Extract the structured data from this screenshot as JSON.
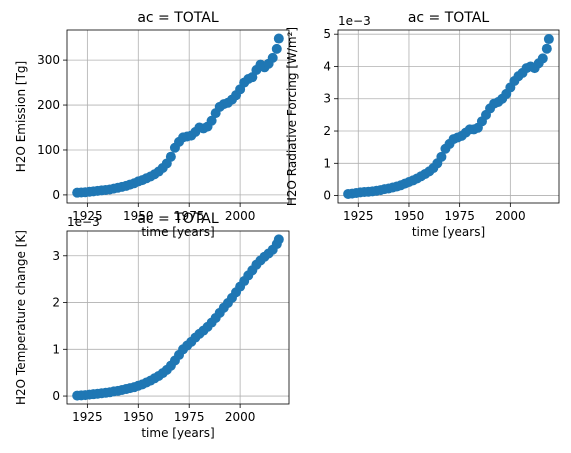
{
  "chart_data": [
    {
      "type": "scatter",
      "title": "ac = TOTAL",
      "xlabel": "time [years]",
      "ylabel": "H2O Emission [Tg]",
      "offset_text": "",
      "xlim": [
        1915,
        2024
      ],
      "ylim": [
        -18,
        367
      ],
      "xticks": [
        1925,
        1950,
        1975,
        2000
      ],
      "yticks": [
        0,
        100,
        200,
        300
      ],
      "grid": true,
      "color": "#1f77b4",
      "x": [
        1920,
        1922,
        1924,
        1926,
        1928,
        1930,
        1932,
        1934,
        1936,
        1938,
        1940,
        1942,
        1944,
        1946,
        1948,
        1950,
        1952,
        1954,
        1956,
        1958,
        1960,
        1962,
        1964,
        1966,
        1968,
        1970,
        1972,
        1974,
        1976,
        1978,
        1980,
        1982,
        1984,
        1986,
        1988,
        1990,
        1992,
        1994,
        1996,
        1998,
        2000,
        2002,
        2004,
        2006,
        2008,
        2010,
        2012,
        2014,
        2016,
        2018,
        2019
      ],
      "y": [
        5,
        5.5,
        6,
        7,
        8,
        9,
        10,
        11,
        12,
        14,
        16,
        18,
        20,
        23,
        26,
        30,
        33,
        37,
        41,
        46,
        52,
        60,
        70,
        85,
        105,
        118,
        128,
        130,
        132,
        140,
        150,
        148,
        152,
        165,
        182,
        196,
        202,
        205,
        212,
        222,
        235,
        250,
        258,
        262,
        278,
        290,
        284,
        292,
        305,
        325,
        348
      ]
    },
    {
      "type": "scatter",
      "title": "ac = TOTAL",
      "xlabel": "time [years]",
      "ylabel": "H2O Radiative Forcing [W/m²]",
      "offset_text": "1e−3",
      "xlim": [
        1915,
        2024
      ],
      "ylim": [
        -0.23,
        5.13
      ],
      "xticks": [
        1925,
        1950,
        1975,
        2000
      ],
      "yticks": [
        0,
        1,
        2,
        3,
        4,
        5
      ],
      "grid": true,
      "color": "#1f77b4",
      "x": [
        1920,
        1922,
        1924,
        1926,
        1928,
        1930,
        1932,
        1934,
        1936,
        1938,
        1940,
        1942,
        1944,
        1946,
        1948,
        1950,
        1952,
        1954,
        1956,
        1958,
        1960,
        1962,
        1964,
        1966,
        1968,
        1970,
        1972,
        1974,
        1976,
        1978,
        1980,
        1982,
        1984,
        1986,
        1988,
        1990,
        1992,
        1994,
        1996,
        1998,
        2000,
        2002,
        2004,
        2006,
        2008,
        2010,
        2012,
        2014,
        2016,
        2018,
        2019
      ],
      "y": [
        0.05,
        0.06,
        0.08,
        0.1,
        0.11,
        0.12,
        0.13,
        0.15,
        0.17,
        0.2,
        0.22,
        0.25,
        0.28,
        0.32,
        0.37,
        0.42,
        0.47,
        0.53,
        0.6,
        0.67,
        0.75,
        0.85,
        1.0,
        1.2,
        1.45,
        1.6,
        1.75,
        1.8,
        1.85,
        1.95,
        2.05,
        2.05,
        2.1,
        2.3,
        2.5,
        2.7,
        2.85,
        2.9,
        3.0,
        3.15,
        3.35,
        3.55,
        3.7,
        3.8,
        3.95,
        4.0,
        3.95,
        4.1,
        4.25,
        4.55,
        4.85
      ]
    },
    {
      "type": "scatter",
      "title": "ac = TOTAL",
      "xlabel": "time [years]",
      "ylabel": "H2O Temperature change [K]",
      "offset_text": "1e−3",
      "xlim": [
        1915,
        2024
      ],
      "ylim": [
        -0.17,
        3.53
      ],
      "xticks": [
        1925,
        1950,
        1975,
        2000
      ],
      "yticks": [
        0,
        1,
        2,
        3
      ],
      "grid": true,
      "color": "#1f77b4",
      "x": [
        1920,
        1922,
        1924,
        1926,
        1928,
        1930,
        1932,
        1934,
        1936,
        1938,
        1940,
        1942,
        1944,
        1946,
        1948,
        1950,
        1952,
        1954,
        1956,
        1958,
        1960,
        1962,
        1964,
        1966,
        1968,
        1970,
        1972,
        1974,
        1976,
        1978,
        1980,
        1982,
        1984,
        1986,
        1988,
        1990,
        1992,
        1994,
        1996,
        1998,
        2000,
        2002,
        2004,
        2006,
        2008,
        2010,
        2012,
        2014,
        2016,
        2018,
        2019
      ],
      "y": [
        0.01,
        0.015,
        0.02,
        0.03,
        0.04,
        0.05,
        0.06,
        0.07,
        0.08,
        0.1,
        0.11,
        0.13,
        0.15,
        0.17,
        0.19,
        0.22,
        0.25,
        0.29,
        0.33,
        0.38,
        0.43,
        0.49,
        0.56,
        0.65,
        0.76,
        0.88,
        1.0,
        1.08,
        1.16,
        1.25,
        1.33,
        1.4,
        1.48,
        1.57,
        1.67,
        1.78,
        1.89,
        1.99,
        2.1,
        2.22,
        2.34,
        2.46,
        2.58,
        2.69,
        2.81,
        2.9,
        2.98,
        3.05,
        3.13,
        3.25,
        3.35
      ]
    }
  ]
}
